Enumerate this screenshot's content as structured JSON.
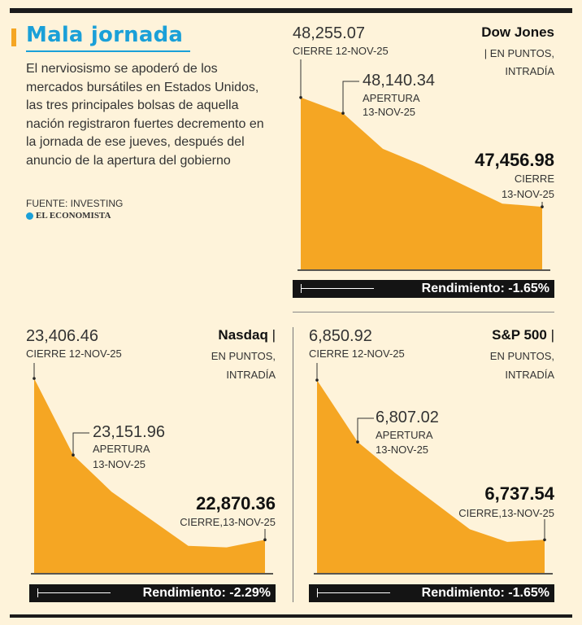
{
  "headline": "Mala jornada",
  "lead": "El nerviosismo se apoderó de los mercados bursátiles en Estados Unidos, las tres principales bolsas de aquella nación registraron fuertes decremento en la jornada de ese jueves, después del anuncio de la apertura del gobierno",
  "source": "FUENTE: INVESTING",
  "brand": "EL ECONOMISTA",
  "colors": {
    "area": "#f5a623",
    "accent": "#1aa0d8",
    "background": "#fef3da",
    "dark": "#141414"
  },
  "chart_data": [
    {
      "type": "area",
      "title": "Dow Jones",
      "unit_line1": "| EN PUNTOS,",
      "unit_line2": "INTRADÍA",
      "first_value": "48,255.07",
      "first_label": "CIERRE 12-NOV-25",
      "open_value": "48,140.34",
      "open_label_1": "APERTURA",
      "open_label_2": "13-NOV-25",
      "close_value": "47,456.98",
      "close_label_1": "CIERRE",
      "close_label_2": "13-NOV-25",
      "performance": "Rendimiento: -1.65%",
      "values": [
        48255.07,
        48140.34,
        47880,
        47760,
        47620,
        47480,
        47456.98
      ],
      "ylim": [
        47000,
        48450
      ]
    },
    {
      "type": "area",
      "title": "Nasdaq",
      "unit_line1": "EN PUNTOS,",
      "unit_line2": "INTRADÍA",
      "first_value": "23,406.46",
      "first_label": "CIERRE 12-NOV-25",
      "open_value": "23,151.96",
      "open_label_1": "APERTURA",
      "open_label_2": "13-NOV-25",
      "close_value": "22,870.36",
      "close_label_1": "CIERRE,13-NOV-25",
      "close_label_2": "",
      "performance": "Rendimiento: -2.29%",
      "values": [
        23406.46,
        23151.96,
        23030,
        22940,
        22850,
        22845,
        22870.36
      ],
      "ylim": [
        22760,
        23420
      ]
    },
    {
      "type": "area",
      "title": "S&P 500",
      "unit_line1": "EN PUNTOS,",
      "unit_line2": "INTRADÍA",
      "first_value": "6,850.92",
      "first_label": "CIERRE 12-NOV-25",
      "open_value": "6,807.02",
      "open_label_1": "APERTURA",
      "open_label_2": "13-NOV-25",
      "close_value": "6,737.54",
      "close_label_1": "CIERRE,13-NOV-25",
      "close_label_2": "",
      "performance": "Rendimiento: -1.65%",
      "values": [
        6850.92,
        6807.02,
        6785,
        6765,
        6745,
        6736,
        6737.54
      ],
      "ylim": [
        6714,
        6855
      ]
    }
  ]
}
